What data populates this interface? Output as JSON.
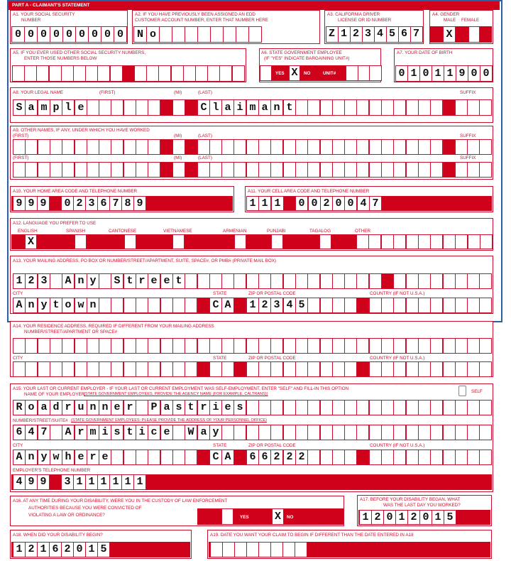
{
  "header": "PART A - CLAIMANT'S STATEMENT",
  "colors": {
    "form_red": "#d0021b",
    "frame_blue": "#2e5f9e"
  },
  "a1": {
    "l1": "A1. YOUR SOCIAL SECURITY",
    "l2": "NUMBER",
    "value": "000000000"
  },
  "a2": {
    "l1": "A2. IF YOU HAVE PREVIOUSLY BEEN ASSIGNED AN EDD",
    "l2": "CUSTOMER ACCOUNT NUMBER, ENTER THAT NUMBER HERE",
    "value": "No"
  },
  "a3": {
    "l1": "A3. CALIFORNIA DRIVER",
    "l2": "LICENSE OR ID NUMBER",
    "value": "Z1234567"
  },
  "a4": {
    "label": "A4. GENDER",
    "male": "MALE",
    "female": "FEMALE",
    "male_mark": "X",
    "female_mark": ""
  },
  "a5": {
    "l1": "A5. IF YOU EVER USED OTHER SOCIAL SECURITY NUMBERS,",
    "l2": "ENTER THOSE NUMBERS BELOW",
    "value1": "",
    "value2": ""
  },
  "a6": {
    "l1": "A6. STATE GOVERNMENT EMPLOYEE",
    "l2": "(IF \"YES\" INDICATE BARGAINING UNIT#)",
    "yes": "YES",
    "no": "NO",
    "unit": "UNIT#",
    "yes_mark": "",
    "no_mark": "X",
    "unit_value": ""
  },
  "a7": {
    "label": "A7. YOUR DATE OF BIRTH",
    "value": "01011900"
  },
  "a8": {
    "label": "A8. YOUR LEGAL NAME",
    "first_label": "(FIRST)",
    "mi_label": "(MI)",
    "last_label": "(LAST)",
    "suffix_label": "SUFFIX",
    "first": "Sample",
    "mi": "",
    "last": "Claimant",
    "suffix": ""
  },
  "a9": {
    "label": "A9. OTHER NAMES, IF ANY, UNDER WHICH YOU HAVE WORKED",
    "first_label": "(FIRST)",
    "mi_label": "(MI)",
    "last_label": "(LAST)",
    "suffix_label": "SUFFIX",
    "rows": [
      {
        "first": "",
        "mi": "",
        "last": "",
        "suffix": ""
      },
      {
        "first": "",
        "mi": "",
        "last": "",
        "suffix": ""
      }
    ]
  },
  "a10": {
    "label": "A10. YOUR HOME AREA CODE AND TELEPHONE NUMBER",
    "area": "999",
    "number": "0236789"
  },
  "a11": {
    "label": "A11. YOUR CELL AREA CODE AND TELEPHONE NUMBER",
    "area": "111",
    "number": "0020047"
  },
  "a12": {
    "label": "A12. LANGUAGE YOU PREFER TO USE",
    "languages": [
      {
        "name": "ENGLISH",
        "mark": "X"
      },
      {
        "name": "SPANISH",
        "mark": ""
      },
      {
        "name": "CANTONESE",
        "mark": ""
      },
      {
        "name": "VIETNAMESE",
        "mark": ""
      },
      {
        "name": "ARMENIAN",
        "mark": ""
      },
      {
        "name": "PUNJABI",
        "mark": ""
      },
      {
        "name": "TAGALOG",
        "mark": ""
      },
      {
        "name": "OTHER",
        "mark": ""
      }
    ],
    "other": ""
  },
  "a13": {
    "label": "A13. YOUR MAILING ADDRESS, PO BOX OR NUMBER/STREET/APARTMENT, SUITE, SPACE#, OR PMB# (PRIVATE MAIL BOX)",
    "address": "123 Any Street",
    "city_label": "CITY",
    "state_label": "STATE",
    "zip_label": "ZIP OR POSTAL CODE",
    "country_label": "COUNTRY (IF NOT U.S.A.)",
    "city": "Anytown",
    "state": "CA",
    "zip": "12345",
    "country": ""
  },
  "a14": {
    "l1": "A14. YOUR RESIDENCE ADDRESS, REQUIRED IF DIFFERENT FROM YOUR MAILING ADDRESS",
    "l2": "NUMBER/STREET/APARTMENT OR SPACE#",
    "address": "",
    "city_label": "CITY",
    "state_label": "STATE",
    "zip_label": "ZIP OR POSTAL CODE",
    "country_label": "COUNTRY (IF NOT U.S.A.)",
    "city": "",
    "state": "",
    "zip": "",
    "country": ""
  },
  "a15": {
    "l1": "A15. YOUR LAST OR CURRENT EMPLOYER - IF YOUR LAST OR CURRENT EMPLOYMENT WAS SELF-EMPLOYMENT, ENTER \"SELF\" AND FILL-IN THIS OPTION",
    "name_label": "NAME OF YOUR EMPLOYER",
    "name_note": "(STATE GOVERNMENT EMPLOYEES, PROVIDE THE AGENCY NAME (FOR EXAMPLE, CALTRANS))",
    "self_label": "SELF",
    "employer": "Roadrunner Pastries",
    "street_label": "NUMBER/STREET/SUITE#",
    "street_note": "(STATE GOVERNMENT EMPLOYEES: PLEASE PROVIDE THE ADDRESS OF YOUR PERSONNEL OFFICE)",
    "street": "647 Armistice Way",
    "city_label": "CITY",
    "state_label": "STATE",
    "zip_label": "ZIP OR POSTAL CODE",
    "country_label": "COUNTRY (IF NOT U.S.A.)",
    "city": "Anywhere",
    "state": "CA",
    "zip": "66222",
    "country": "",
    "phone_label": "EMPLOYER'S TELEPHONE NUMBER",
    "phone_area": "499",
    "phone_number": "3111111"
  },
  "a16": {
    "l1": "A16. AT ANY TIME DURING YOUR DISABILITY, WERE YOU IN THE CUSTODY OF LAW ENFORCEMENT",
    "l2": "AUTHORITIES BECAUSE YOU WERE CONVICTED OF",
    "l3": "VIOLATING A LAW OR ORDINANCE?",
    "yes": "YES",
    "no": "NO",
    "yes_mark": "",
    "no_mark": "X"
  },
  "a17": {
    "l1": "A17. BEFORE YOUR DISABILITY BEGAN, WHAT",
    "l2": "WAS THE LAST DAY YOU WORKED?",
    "value": "12012015"
  },
  "a18": {
    "label": "A18. WHEN DID YOUR DISABILITY BEGIN?",
    "value": "12162015"
  },
  "a19": {
    "label": "A19. DATE YOU WANT YOUR CLAIM TO BEGIN IF DIFFERENT THAN THE DATE ENTERED IN A18",
    "value": ""
  }
}
